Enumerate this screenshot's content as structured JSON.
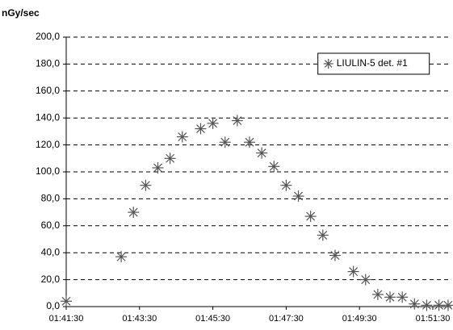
{
  "chart_data": {
    "type": "scatter",
    "y_label": "nGy/sec",
    "x": [
      "01:41:30",
      "01:43:00",
      "01:43:20",
      "01:43:40",
      "01:44:00",
      "01:44:20",
      "01:44:40",
      "01:45:10",
      "01:45:30",
      "01:45:50",
      "01:46:10",
      "01:46:30",
      "01:46:50",
      "01:47:10",
      "01:47:30",
      "01:47:50",
      "01:48:10",
      "01:48:30",
      "01:48:50",
      "01:49:20",
      "01:49:40",
      "01:50:00",
      "01:50:20",
      "01:50:40",
      "01:51:00",
      "01:51:20",
      "01:51:40",
      "01:51:55"
    ],
    "series": [
      {
        "name": "LIULIN-5 det. #1",
        "color": "#555555",
        "values": [
          4,
          37,
          70,
          90,
          103,
          110,
          126,
          132,
          136,
          122,
          138,
          122,
          114,
          104,
          90,
          82,
          67,
          53,
          38,
          26,
          20,
          9,
          7,
          7,
          2,
          1,
          1,
          1
        ]
      }
    ],
    "xlim": [
      "01:41:30",
      "01:52:00"
    ],
    "xticks": [
      "01:41:30",
      "01:43:30",
      "01:45:30",
      "01:47:30",
      "01:49:30",
      "01:51:30"
    ],
    "ylim": [
      0,
      200
    ],
    "yticks": [
      {
        "value": 0,
        "label": "0,0"
      },
      {
        "value": 20,
        "label": "20,0"
      },
      {
        "value": 40,
        "label": "40,0"
      },
      {
        "value": 60,
        "label": "60,0"
      },
      {
        "value": 80,
        "label": "80,0"
      },
      {
        "value": 100,
        "label": "100,0"
      },
      {
        "value": 120,
        "label": "120,0"
      },
      {
        "value": 140,
        "label": "140,0"
      },
      {
        "value": 160,
        "label": "160,0"
      },
      {
        "value": 180,
        "label": "180,0"
      },
      {
        "value": 200,
        "label": "200,0"
      }
    ],
    "grid": true,
    "legend_position": "upper right"
  }
}
